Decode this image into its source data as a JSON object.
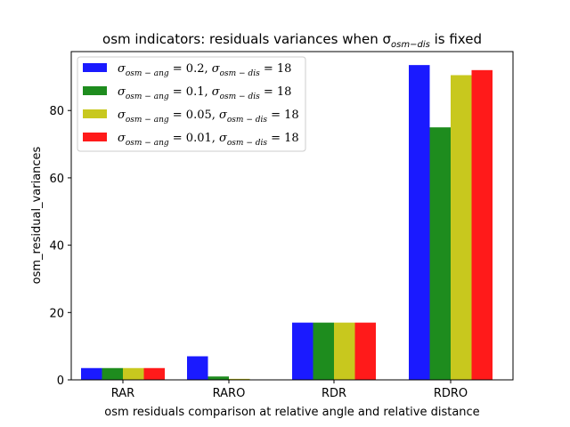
{
  "chart_data": {
    "type": "bar",
    "title": "osm indicators: residuals variances when σ",
    "title_sub": "osm−dis",
    "title_suffix": " is fixed",
    "xlabel": "osm residuals comparison at relative angle and relative distance",
    "ylabel": "osm_residual_variances",
    "categories": [
      "RAR",
      "RARO",
      "RDR",
      "RDRO"
    ],
    "ylim": [
      0,
      97.5
    ],
    "yticks": [
      0,
      20,
      40,
      60,
      80
    ],
    "grid": false,
    "legend_position": "top-left",
    "series": [
      {
        "name": "σosm−ang = 0.2, σosm−dis = 18",
        "ang": "0.2",
        "dis": "18",
        "color": "#1a1aff",
        "values": [
          3.5,
          7.0,
          17.0,
          93.5
        ]
      },
      {
        "name": "σosm−ang = 0.1, σosm−dis = 18",
        "ang": "0.1",
        "dis": "18",
        "color": "#1e8c1e",
        "values": [
          3.5,
          1.0,
          17.0,
          75.0
        ]
      },
      {
        "name": "σosm−ang = 0.05, σosm−dis = 18",
        "ang": "0.05",
        "dis": "18",
        "color": "#c8c81e",
        "values": [
          3.5,
          0.3,
          17.0,
          90.5
        ]
      },
      {
        "name": "σosm−ang = 0.01, σosm−dis = 18",
        "ang": "0.01",
        "dis": "18",
        "color": "#ff1a1a",
        "values": [
          3.5,
          0.1,
          17.0,
          92.0
        ]
      }
    ]
  }
}
